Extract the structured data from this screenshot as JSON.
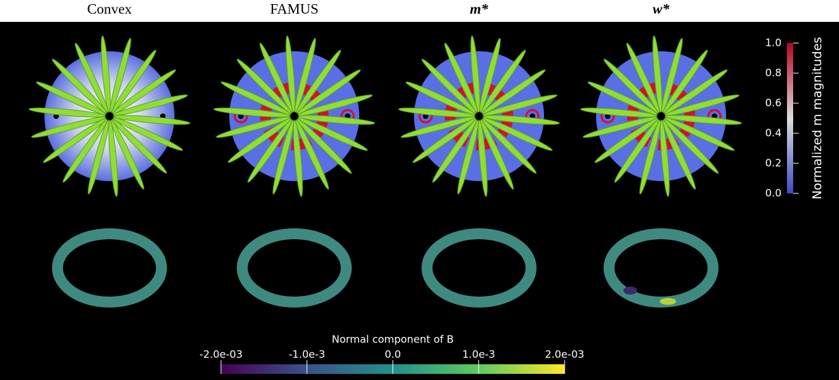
{
  "columns": [
    {
      "title": "Convex"
    },
    {
      "title": "FAMUS"
    },
    {
      "title": "m*"
    },
    {
      "title": "w*"
    }
  ],
  "colorbars": [
    {
      "title": "Normalized m magnitudes",
      "range": [
        0,
        1
      ],
      "ticks": [
        {
          "value": 0,
          "label": "0.0"
        },
        {
          "value": 0.2,
          "label": "0.2"
        },
        {
          "value": 0.4,
          "label": "0.4"
        },
        {
          "value": 0.6,
          "label": "0.6"
        },
        {
          "value": 0.8,
          "label": "0.8"
        },
        {
          "value": 1,
          "label": "1.0"
        }
      ]
    },
    {
      "title": "Normal component of B",
      "range": [
        -0.002,
        0.002
      ],
      "ticks": [
        {
          "value": -0.002,
          "label": "-2.0e-03"
        },
        {
          "value": -0.001,
          "label": "-1.0e-3"
        },
        {
          "value": 0,
          "label": "0.0"
        },
        {
          "value": 0.001,
          "label": "1.0e-3"
        },
        {
          "value": 0.002,
          "label": "2.0e-03"
        }
      ]
    }
  ]
}
